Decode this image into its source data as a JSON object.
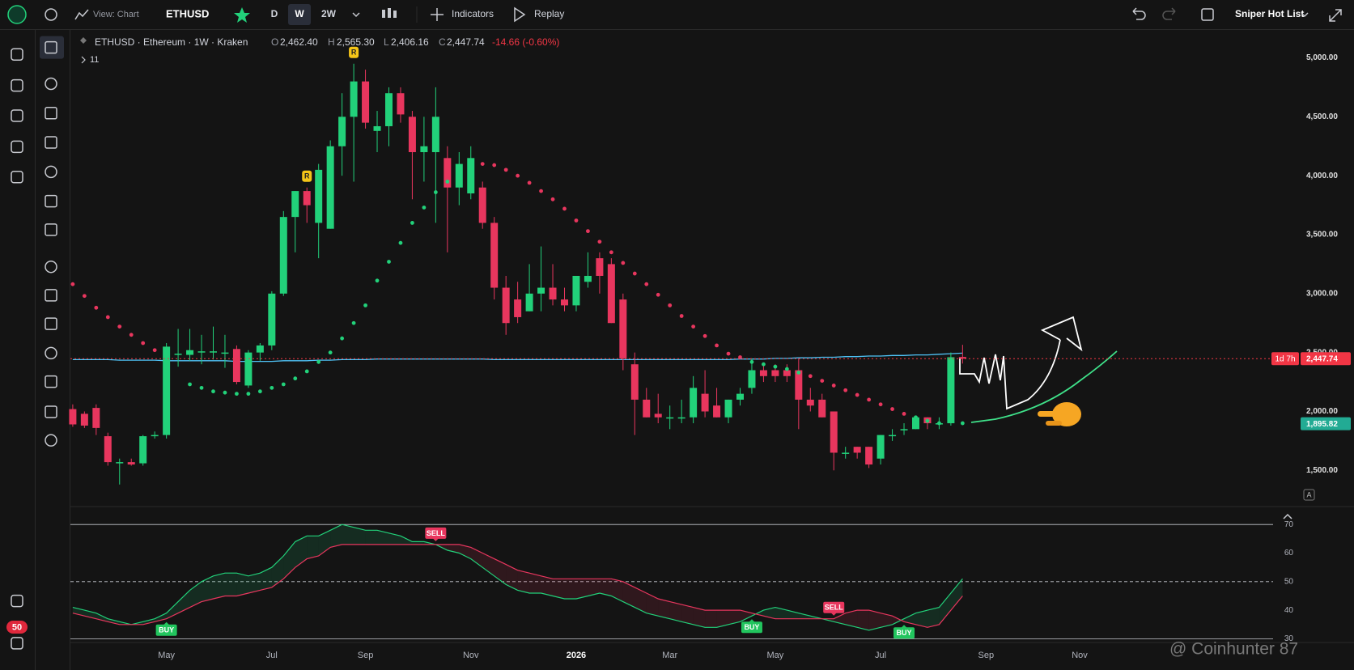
{
  "toolbar": {
    "view": "View: Chart",
    "symbol": "ETHUSD",
    "intervals": [
      "D",
      "W",
      "2W"
    ],
    "indicators": "Indicators",
    "replay": "Replay",
    "watchlist": "Sniper Hot List"
  },
  "left_toolbar": {
    "badge": "50"
  },
  "chart_data": {
    "type": "candlestick",
    "symbol_line": "ETHUSD · Ethereum · 1W · Kraken",
    "ohlc_labels": [
      "O",
      "H",
      "L",
      "C"
    ],
    "ohlc_values": [
      "2,462.40",
      "2,565.30",
      "2,406.16",
      "2,447.74"
    ],
    "change": "-14.66 (-0.60%)",
    "indicators_count": "11",
    "up_color": "#22d17a",
    "down_color": "#e8365e",
    "candles": [
      [
        2020,
        2060,
        1870,
        1890
      ],
      [
        1980,
        2000,
        1860,
        1880
      ],
      [
        2030,
        2060,
        1800,
        1860
      ],
      [
        1790,
        1820,
        1540,
        1570
      ],
      [
        1560,
        1600,
        1380,
        1570
      ],
      [
        1570,
        1600,
        1540,
        1550
      ],
      [
        1560,
        1800,
        1540,
        1790
      ],
      [
        1790,
        1830,
        1770,
        1800
      ],
      [
        1800,
        2580,
        1770,
        2550
      ],
      [
        2480,
        2700,
        2380,
        2490
      ],
      [
        2480,
        2700,
        2430,
        2520
      ],
      [
        2500,
        2650,
        2400,
        2510
      ],
      [
        2500,
        2720,
        2440,
        2510
      ],
      [
        2490,
        2650,
        2370,
        2500
      ],
      [
        2530,
        2560,
        2230,
        2250
      ],
      [
        2220,
        2520,
        2200,
        2500
      ],
      [
        2500,
        2580,
        2430,
        2560
      ],
      [
        2560,
        3020,
        2520,
        3000
      ],
      [
        3000,
        3700,
        2980,
        3650
      ],
      [
        3650,
        3870,
        3350,
        3870
      ],
      [
        3870,
        3900,
        3600,
        3750
      ],
      [
        3600,
        4100,
        3300,
        4050
      ],
      [
        3550,
        4300,
        3550,
        4250
      ],
      [
        4250,
        4700,
        4000,
        4500
      ],
      [
        4500,
        4950,
        3950,
        4800
      ],
      [
        4800,
        4900,
        4400,
        4450
      ],
      [
        4380,
        4550,
        4200,
        4420
      ],
      [
        4420,
        4750,
        4250,
        4700
      ],
      [
        4700,
        4750,
        4450,
        4520
      ],
      [
        4500,
        4550,
        3800,
        4200
      ],
      [
        4200,
        4500,
        3950,
        4250
      ],
      [
        4200,
        4750,
        3600,
        4500
      ],
      [
        4150,
        4250,
        3350,
        3900
      ],
      [
        3900,
        4200,
        3750,
        4100
      ],
      [
        3850,
        4250,
        3800,
        4150
      ],
      [
        3900,
        3950,
        3550,
        3600
      ],
      [
        3600,
        3650,
        2950,
        3050
      ],
      [
        3050,
        3150,
        2650,
        2750
      ],
      [
        2950,
        3100,
        2750,
        2800
      ],
      [
        2850,
        3250,
        2850,
        3000
      ],
      [
        3000,
        3400,
        2850,
        3050
      ],
      [
        3050,
        3250,
        2900,
        2950
      ],
      [
        2950,
        3050,
        2850,
        2900
      ],
      [
        2900,
        3150,
        2850,
        3150
      ],
      [
        3100,
        3350,
        3050,
        3150
      ],
      [
        3300,
        3350,
        3000,
        3150
      ],
      [
        3250,
        3300,
        2750,
        2750
      ],
      [
        2950,
        3000,
        2350,
        2450
      ],
      [
        2400,
        2500,
        1800,
        2100
      ],
      [
        2100,
        2200,
        1950,
        1950
      ],
      [
        1980,
        2150,
        1900,
        1950
      ],
      [
        1950,
        2050,
        1850,
        1950
      ],
      [
        1950,
        2100,
        1900,
        1950
      ],
      [
        1950,
        2300,
        1900,
        2200
      ],
      [
        2150,
        2350,
        1950,
        2000
      ],
      [
        2050,
        2200,
        1950,
        1950
      ],
      [
        1950,
        2100,
        1900,
        2100
      ],
      [
        2100,
        2200,
        2050,
        2150
      ],
      [
        2200,
        2450,
        2150,
        2350
      ],
      [
        2350,
        2400,
        2250,
        2300
      ],
      [
        2350,
        2400,
        2250,
        2300
      ],
      [
        2350,
        2400,
        2250,
        2300
      ],
      [
        2350,
        2450,
        1850,
        2100
      ],
      [
        2100,
        2200,
        2000,
        2050
      ],
      [
        2100,
        2150,
        1950,
        1950
      ],
      [
        2000,
        2000,
        1500,
        1650
      ],
      [
        1650,
        1700,
        1600,
        1650
      ],
      [
        1700,
        1700,
        1600,
        1650
      ],
      [
        1700,
        1700,
        1520,
        1550
      ],
      [
        1600,
        1800,
        1550,
        1800
      ],
      [
        1800,
        1850,
        1750,
        1800
      ],
      [
        1850,
        1900,
        1800,
        1850
      ],
      [
        1850,
        1950,
        1850,
        1950
      ],
      [
        1950,
        1950,
        1850,
        1900
      ],
      [
        1900,
        1950,
        1850,
        1900
      ],
      [
        1900,
        2500,
        1880,
        2460
      ],
      [
        2462.4,
        2565.3,
        2406.16,
        2447.74
      ]
    ],
    "ma": {
      "color": "#4fc3f7",
      "values": [
        2440,
        2440,
        2440,
        2440,
        2435,
        2435,
        2435,
        2435,
        2430,
        2430,
        2430,
        2430,
        2430,
        2430,
        2425,
        2425,
        2425,
        2425,
        2430,
        2430,
        2430,
        2435,
        2435,
        2440,
        2440,
        2440,
        2445,
        2445,
        2445,
        2445,
        2445,
        2445,
        2445,
        2445,
        2445,
        2445,
        2440,
        2440,
        2440,
        2440,
        2440,
        2440,
        2440,
        2440,
        2440,
        2440,
        2440,
        2440,
        2440,
        2440,
        2440,
        2440,
        2440,
        2440,
        2440,
        2440,
        2440,
        2445,
        2445,
        2445,
        2450,
        2450,
        2455,
        2455,
        2460,
        2460,
        2465,
        2465,
        2470,
        2470,
        2475,
        2475,
        2480,
        2480,
        2485,
        2490,
        2495
      ]
    },
    "sar": {
      "up_color": "#22d17a",
      "down_color": "#e8365e",
      "values": [
        3080,
        2980,
        2880,
        2800,
        2720,
        2650,
        2580,
        2520,
        null,
        null,
        2230,
        2200,
        2170,
        2160,
        2150,
        2150,
        2170,
        2200,
        2230,
        2280,
        2340,
        2420,
        2500,
        2620,
        2750,
        2900,
        3110,
        3270,
        3430,
        3600,
        3730,
        3860,
        3950,
        4000,
        4050,
        4100,
        4090,
        4050,
        4000,
        3940,
        3870,
        3800,
        3720,
        3620,
        3530,
        3440,
        3350,
        3260,
        3170,
        3080,
        2990,
        2900,
        2810,
        2720,
        2640,
        2560,
        2490,
        2460,
        2420,
        2400,
        2380,
        2360,
        2330,
        2300,
        2260,
        2220,
        2180,
        2140,
        2100,
        2060,
        2020,
        1980,
        1950,
        1920,
        1900,
        null,
        1900
      ]
    },
    "r_labels": [
      null,
      null,
      null,
      null,
      null,
      null,
      null,
      null,
      null,
      null,
      null,
      null,
      null,
      null,
      null,
      null,
      null,
      null,
      null,
      null,
      "R",
      null,
      null,
      null,
      "R",
      null,
      null,
      null,
      null,
      null,
      null,
      null,
      null,
      null,
      null,
      null,
      null,
      null,
      null,
      null,
      null,
      null,
      null,
      null,
      null,
      null,
      null,
      null,
      null,
      null,
      null,
      null,
      null,
      null,
      null,
      null,
      null,
      null,
      null,
      null,
      null,
      null,
      null,
      null,
      null,
      null,
      null,
      null,
      null,
      null,
      null,
      null,
      null,
      null,
      null,
      null,
      null
    ],
    "xlim": [
      -0.2,
      104.8
    ],
    "xticks": [
      {
        "value": 8,
        "label": "May"
      },
      {
        "value": 17,
        "label": "Jul"
      },
      {
        "value": 25,
        "label": "Sep"
      },
      {
        "value": 34,
        "label": "Nov"
      },
      {
        "value": 43,
        "label": "2026"
      },
      {
        "value": 51,
        "label": "Mar"
      },
      {
        "value": 60,
        "label": "May"
      },
      {
        "value": 69,
        "label": "Jul"
      },
      {
        "value": 78,
        "label": "Sep"
      },
      {
        "value": 86,
        "label": "Nov"
      }
    ],
    "ylim": [
      1200,
      5230
    ],
    "yticks": [
      {
        "value": 1500,
        "label": "1,500.00"
      },
      {
        "value": 2000,
        "label": "2,000.00"
      },
      {
        "value": 2500,
        "label": "2,500.00"
      },
      {
        "value": 3000,
        "label": "3,000.00"
      },
      {
        "value": 3500,
        "label": "3,500.00"
      },
      {
        "value": 4000,
        "label": "4,000.00"
      },
      {
        "value": 4500,
        "label": "4,500.00"
      },
      {
        "value": 5000,
        "label": "5,000.00"
      }
    ],
    "grid": false,
    "price_labels": [
      {
        "value": 2447.74,
        "label": "2,447.74",
        "color": "#f23645"
      },
      {
        "value": 1895.82,
        "label": "1,895.82",
        "color": "#22ab94"
      }
    ],
    "countdown": "1d 7h",
    "indicator": {
      "ylim": [
        29,
        76
      ],
      "yticks": [
        30,
        40,
        50,
        60,
        70
      ],
      "band_lines": [
        {
          "value": 70,
          "style": "solid"
        },
        {
          "value": 50,
          "style": "dashed"
        },
        {
          "value": 30,
          "style": "solid"
        }
      ],
      "series": [
        {
          "color": "#22d17a",
          "values": [
            41,
            40,
            39,
            37,
            36,
            35,
            36,
            37,
            39,
            43,
            47,
            50,
            52,
            53,
            53,
            52,
            53,
            55,
            59,
            64,
            66,
            66,
            68,
            70,
            69,
            68,
            68,
            67,
            66,
            64,
            64,
            63,
            61,
            60,
            58,
            55,
            52,
            49,
            47,
            46,
            46,
            45,
            44,
            44,
            45,
            46,
            45,
            43,
            41,
            39,
            38,
            37,
            36,
            35,
            34,
            34,
            35,
            36,
            38,
            40,
            41,
            40,
            39,
            38,
            37,
            36,
            35,
            34,
            33,
            34,
            35,
            37,
            39,
            40,
            41,
            46,
            51
          ]
        },
        {
          "color": "#e8365e",
          "values": [
            39,
            38,
            37,
            36,
            35,
            35,
            35,
            36,
            37,
            39,
            41,
            43,
            44,
            45,
            45,
            46,
            47,
            48,
            51,
            55,
            58,
            59,
            62,
            63,
            63,
            63,
            63,
            63,
            63,
            63,
            63,
            63,
            63,
            63,
            62,
            60,
            58,
            56,
            54,
            53,
            52,
            51,
            51,
            51,
            51,
            51,
            51,
            50,
            48,
            46,
            44,
            43,
            42,
            41,
            40,
            40,
            40,
            40,
            39,
            38,
            37,
            37,
            37,
            37,
            37,
            37,
            39,
            40,
            40,
            39,
            38,
            36,
            35,
            34,
            35,
            40,
            45
          ]
        }
      ],
      "signals": [
        null,
        null,
        null,
        null,
        null,
        null,
        null,
        null,
        "BUY",
        null,
        null,
        null,
        null,
        null,
        null,
        null,
        null,
        null,
        null,
        null,
        null,
        null,
        null,
        null,
        null,
        null,
        null,
        null,
        null,
        null,
        null,
        "SELL",
        null,
        null,
        null,
        null,
        null,
        null,
        null,
        null,
        null,
        null,
        null,
        null,
        null,
        null,
        null,
        null,
        null,
        null,
        null,
        null,
        null,
        null,
        null,
        null,
        null,
        null,
        "BUY",
        null,
        null,
        null,
        null,
        null,
        null,
        "SELL",
        null,
        null,
        null,
        null,
        null,
        "BUY",
        null,
        null,
        null,
        null,
        null
      ]
    },
    "watermark": "@ Coinhunter 87"
  }
}
